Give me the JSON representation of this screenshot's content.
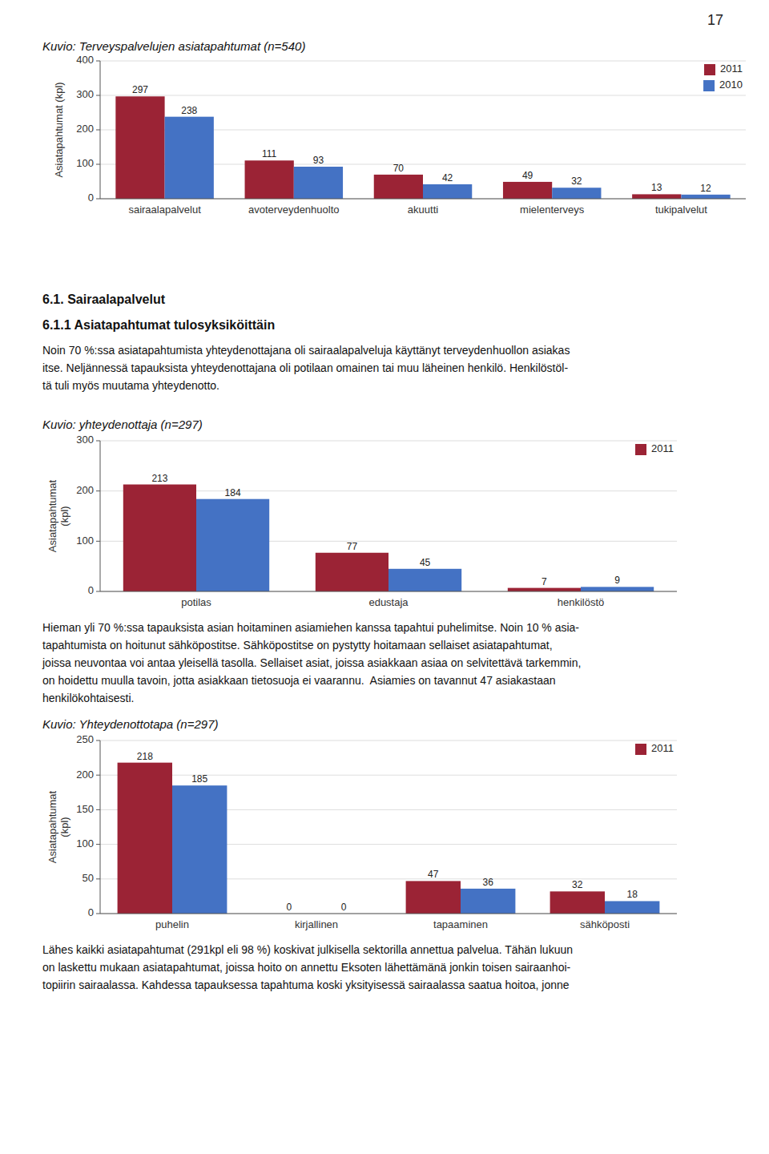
{
  "page_number": "17",
  "section_titles": [
    "6.1. Sairaalapalvelut",
    "6.1.1 Asiatapahtumat tulosyksiköittäin"
  ],
  "paragraphs": [
    [
      "Noin 70 %:ssa asiatapahtumista yhteydenottajana oli sairaalapalveluja käyttänyt terveydenhuollon asiakas",
      "itse. Neljännessä tapauksista yhteydenottajana oli potilaan omainen tai muu läheinen henkilö. Henkilöstöl-",
      "tä tuli myös muutama yhteydenotto."
    ],
    [
      "Hieman yli 70 %:ssa tapauksista asian hoitaminen asiamiehen kanssa tapahtui puhelimitse. Noin 10 % asia-",
      "tapahtumista on hoitunut sähköpostitse. Sähköpostitse on pystytty hoitamaan sellaiset asiatapahtumat,",
      "joissa neuvontaa voi antaa yleisellä tasolla. Sellaiset asiat, joissa asiakkaan asiaa on selvitettävä tarkemmin,",
      "on hoidettu muulla tavoin, jotta asiakkaan tietosuoja ei vaarannu.  Asiamies on tavannut 47 asiakastaan",
      "henkilökohtaisesti."
    ],
    [
      "Lähes kaikki asiatapahtumat (291kpl eli 98 %) koskivat julkisella sektorilla annettua palvelua. Tähän lukuun",
      "on laskettu mukaan asiatapahtumat, joissa hoito on annettu Eksoten lähettämänä jonkin toisen sairaanhoi-",
      "topiirin sairaalassa. Kahdessa tapauksessa tapahtuma koski yksityisessä sairaalassa saatua hoitoa, jonne"
    ]
  ],
  "chart_data": [
    {
      "type": "bar",
      "title": "Kuvio: Terveyspalvelujen asiatapahtumat (n=540)",
      "categories": [
        "sairaalapalvelut",
        "avoterveydenhuolto",
        "akuutti",
        "mielenterveys",
        "tukipalvelut"
      ],
      "series": [
        {
          "name": "2011",
          "color": "#9B2335",
          "values": [
            297,
            111,
            70,
            49,
            13
          ]
        },
        {
          "name": "2010",
          "color": "#4472C4",
          "values": [
            238,
            93,
            42,
            32,
            12
          ]
        }
      ],
      "y_label": "Asiatapahtumat (kpl)",
      "ylim": [
        0,
        400
      ],
      "yticks": [
        0,
        100,
        200,
        300,
        400
      ],
      "grid": true,
      "legend": "top-right",
      "data_labels": true
    },
    {
      "type": "bar",
      "title": "Kuvio: yhteydenottaja (n=297)",
      "categories": [
        "potilas",
        "edustaja",
        "henkilöstö"
      ],
      "series": [
        {
          "name": "2011",
          "color": "#9B2335",
          "values": [
            213,
            77,
            7
          ]
        },
        {
          "color": "#4472C4",
          "values": [
            184,
            45,
            9
          ]
        }
      ],
      "y_label": "Asiatapahtumat\n(kpl)",
      "ylim": [
        0,
        300
      ],
      "yticks": [
        0,
        100,
        200,
        300
      ],
      "grid": true,
      "legend": "top-right",
      "data_labels": true
    },
    {
      "type": "bar",
      "title": "Kuvio: Yhteydenottotapa (n=297)",
      "categories": [
        "puhelin",
        "kirjallinen",
        "tapaaminen",
        "sähköposti"
      ],
      "series": [
        {
          "name": "2011",
          "color": "#9B2335",
          "values": [
            218,
            0,
            47,
            32
          ]
        },
        {
          "color": "#4472C4",
          "values": [
            185,
            0,
            36,
            18
          ]
        }
      ],
      "y_label": "Asiatapahtumat\n(kpl)",
      "ylim": [
        0,
        250
      ],
      "yticks": [
        0,
        50,
        100,
        150,
        200,
        250
      ],
      "grid": true,
      "legend": "top-right",
      "data_labels": true
    }
  ]
}
